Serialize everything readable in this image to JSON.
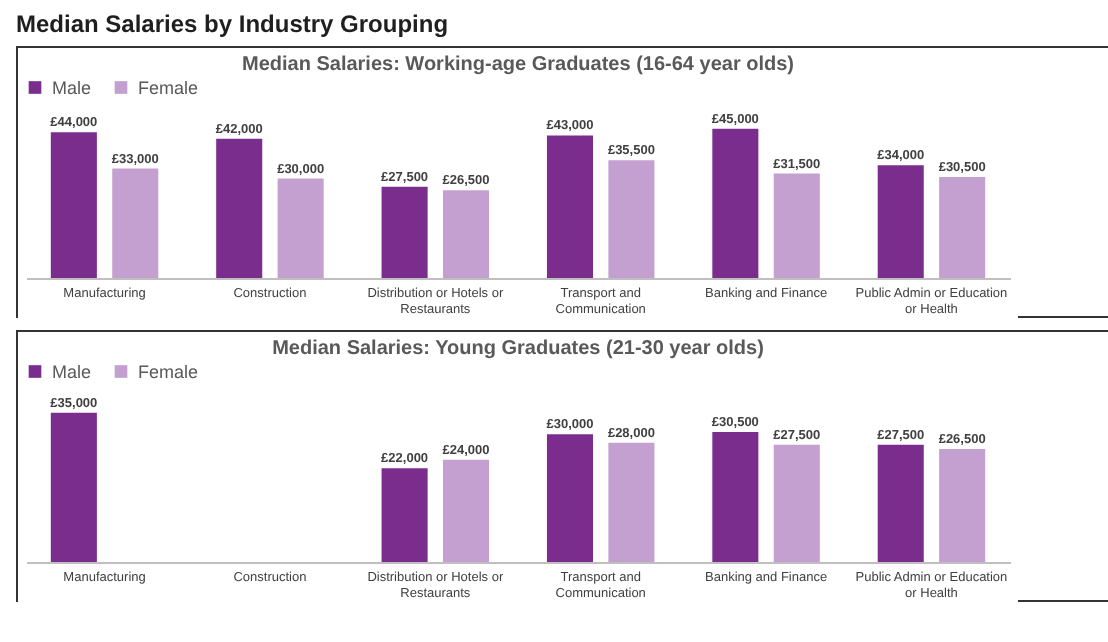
{
  "chart_data": [
    {
      "type": "other",
      "title": "Median Salaries by Industry Grouping"
    },
    {
      "type": "bar",
      "title": "Median Salaries: Working-age Graduates (16-64 year olds)",
      "legend": "top",
      "categories": [
        "Manufacturing",
        "Construction",
        "Distribution or Hotels or Restaurants",
        "Transport and Communication",
        "Banking and Finance",
        "Public Admin or Education or Health"
      ],
      "series": [
        {
          "name": "Male",
          "color": "#7b2d8e",
          "values": [
            44000,
            42000,
            27500,
            43000,
            45000,
            34000
          ],
          "value_labels": [
            "£44,000",
            "£42,000",
            "£27,500",
            "£43,000",
            "£45,000",
            "£34,000"
          ]
        },
        {
          "name": "Female",
          "color": "#c3a0cf",
          "values": [
            33000,
            30000,
            26500,
            35500,
            31500,
            30500
          ],
          "value_labels": [
            "£33,000",
            "£30,000",
            "£26,500",
            "£35,500",
            "£31,500",
            "£30,500"
          ]
        }
      ]
    },
    {
      "type": "bar",
      "title": "Median Salaries: Young Graduates (21-30 year olds)",
      "legend": "top",
      "categories": [
        "Manufacturing",
        "Construction",
        "Distribution or Hotels or Restaurants",
        "Transport and Communication",
        "Banking and Finance",
        "Public Admin or Education or Health"
      ],
      "series": [
        {
          "name": "Male",
          "color": "#7b2d8e",
          "values": [
            35000,
            null,
            22000,
            30000,
            30500,
            27500
          ],
          "value_labels": [
            "£35,000",
            null,
            "£22,000",
            "£30,000",
            "£30,500",
            "£27,500"
          ]
        },
        {
          "name": "Female",
          "color": "#c3a0cf",
          "values": [
            null,
            null,
            24000,
            28000,
            27500,
            26500
          ],
          "value_labels": [
            null,
            null,
            "£24,000",
            "£28,000",
            "£27,500",
            "£26,500"
          ]
        }
      ]
    }
  ]
}
